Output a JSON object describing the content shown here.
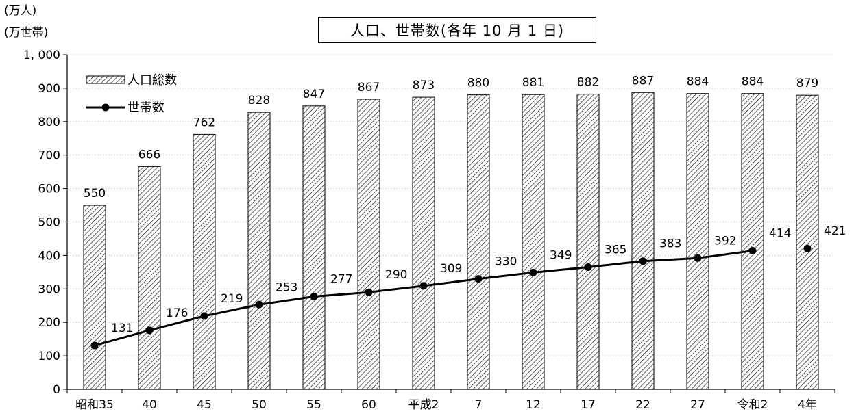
{
  "chart_data": {
    "type": "bar",
    "title": "人口、世帯数(各年 10 月 1 日)",
    "units": [
      "(万人)",
      "(万世帯)"
    ],
    "categories": [
      "昭和35",
      "40",
      "45",
      "50",
      "55",
      "60",
      "平成2",
      "7",
      "12",
      "17",
      "22",
      "27",
      "令和2",
      "4年"
    ],
    "ylim": [
      0,
      1000
    ],
    "yticks": [
      "0",
      "100",
      "200",
      "300",
      "400",
      "500",
      "600",
      "700",
      "800",
      "900",
      "1, 000"
    ],
    "grid": true,
    "legend_position": "top-left",
    "series": [
      {
        "name": "人口総数",
        "kind": "bar",
        "pattern": "diagonal-hatch",
        "values": [
          550,
          666,
          762,
          828,
          847,
          867,
          873,
          880,
          881,
          882,
          887,
          884,
          884,
          879
        ],
        "labels": [
          "550",
          "666",
          "762",
          "828",
          "847",
          "867",
          "873",
          "880",
          "881",
          "882",
          "887",
          "884",
          "884",
          "879"
        ]
      },
      {
        "name": "世帯数",
        "kind": "line",
        "marker": "circle",
        "color": "#000000",
        "values": [
          131,
          176,
          219,
          253,
          277,
          290,
          309,
          330,
          349,
          365,
          383,
          392,
          414,
          421
        ],
        "labels": [
          "131",
          "176",
          "219",
          "253",
          "277",
          "290",
          "309",
          "330",
          "349",
          "365",
          "383",
          "392",
          "414",
          "421"
        ],
        "line_connected_until_index": 12
      }
    ]
  }
}
